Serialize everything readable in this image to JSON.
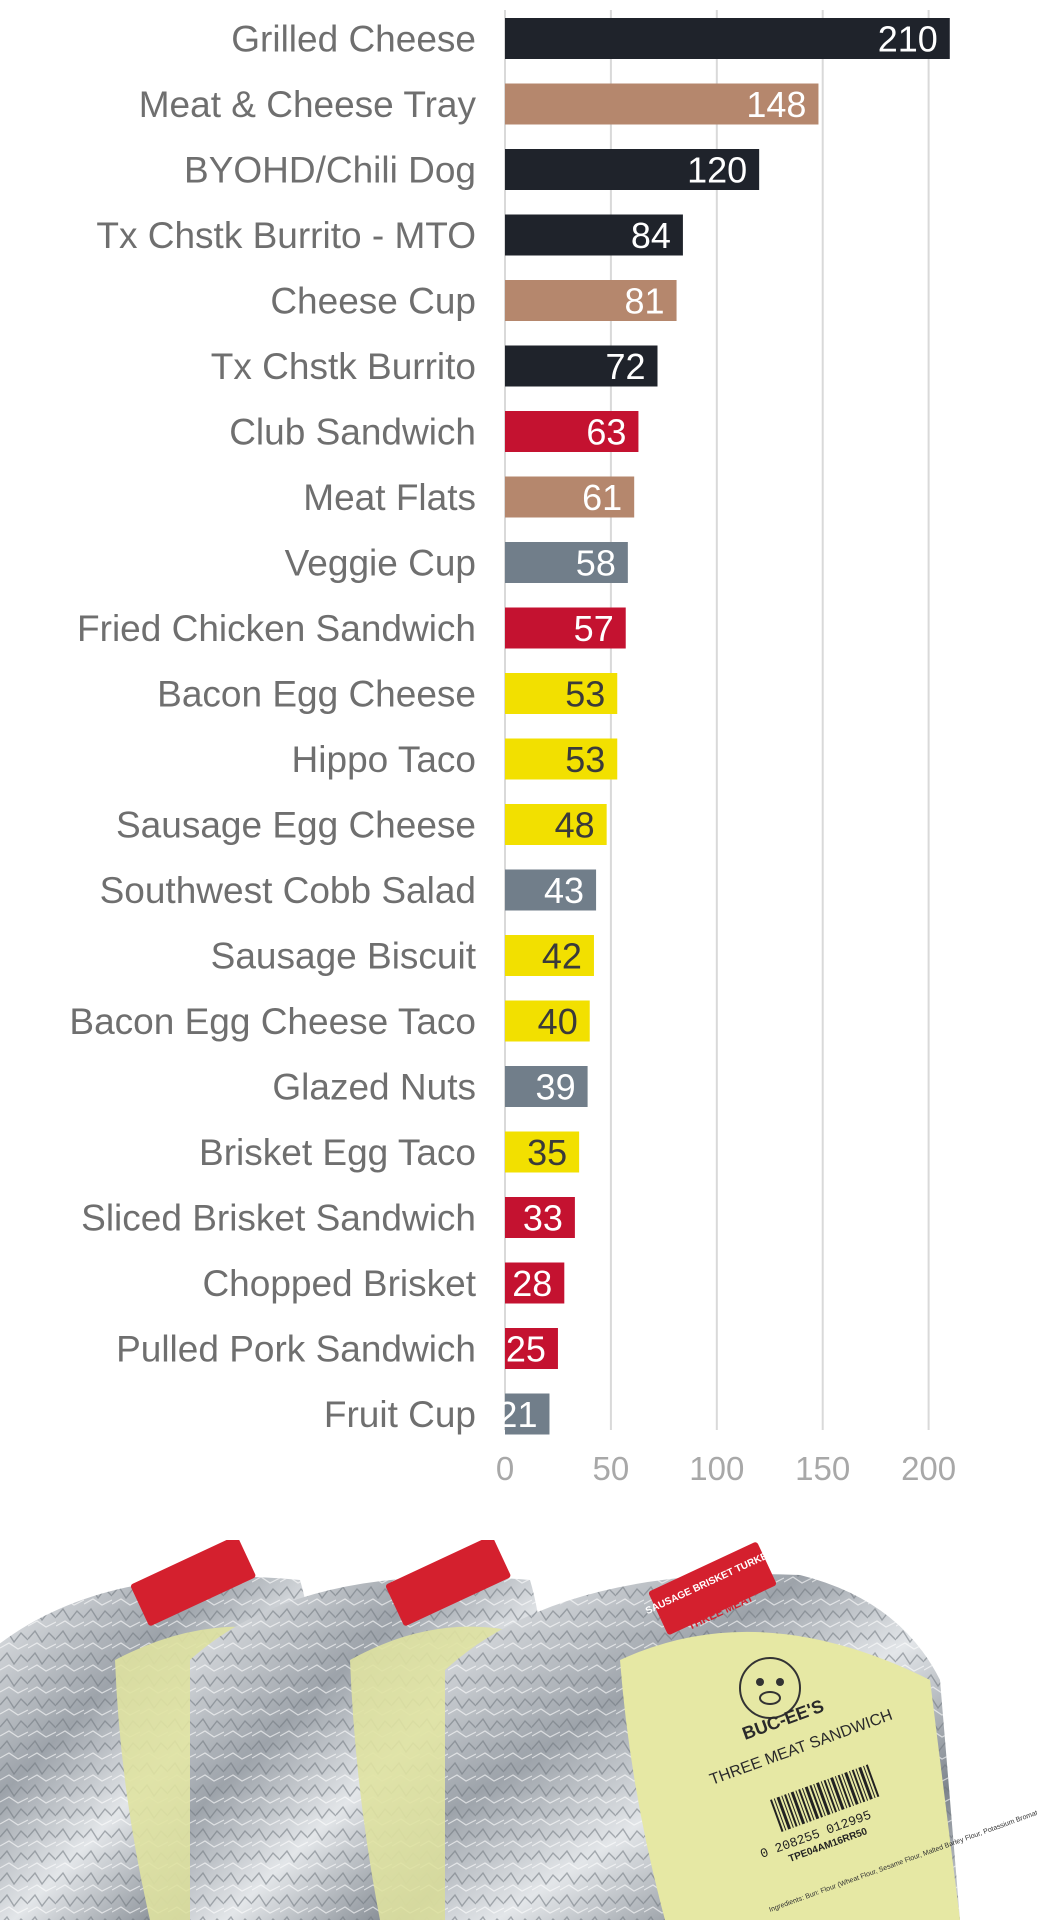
{
  "chart_data": {
    "type": "bar",
    "orientation": "horizontal",
    "title": "",
    "xlabel": "",
    "ylabel": "",
    "xlim": [
      0,
      210
    ],
    "x_ticks": [
      0,
      50,
      100,
      150,
      200
    ],
    "grid": "vertical gridlines on",
    "legend": "none",
    "categories": [
      "Grilled Cheese",
      "Meat & Cheese Tray",
      "BYOHD/Chili Dog",
      "Tx Chstk Burrito - MTO",
      "Cheese Cup",
      "Tx Chstk Burrito",
      "Club Sandwich",
      "Meat Flats",
      "Veggie Cup",
      "Fried Chicken Sandwich",
      "Bacon Egg Cheese",
      "Hippo Taco",
      "Sausage Egg Cheese",
      "Southwest Cobb Salad",
      "Sausage Biscuit",
      "Bacon Egg Cheese Taco",
      "Glazed Nuts",
      "Brisket Egg Taco",
      "Sliced Brisket Sandwich",
      "Chopped Brisket",
      "Pulled Pork Sandwich",
      "Fruit Cup"
    ],
    "values": [
      210,
      148,
      120,
      84,
      81,
      72,
      63,
      61,
      58,
      57,
      53,
      53,
      48,
      43,
      42,
      40,
      39,
      35,
      33,
      28,
      25,
      21
    ],
    "bar_colors": [
      "#1f232b",
      "#b5876d",
      "#1f232b",
      "#1f232b",
      "#b5876d",
      "#1f232b",
      "#c41230",
      "#b5876d",
      "#717e8a",
      "#c41230",
      "#f2e000",
      "#f2e000",
      "#f2e000",
      "#717e8a",
      "#f2e000",
      "#f2e000",
      "#717e8a",
      "#f2e000",
      "#c41230",
      "#c41230",
      "#c41230",
      "#717e8a"
    ],
    "value_label_colors": [
      "#ffffff",
      "#ffffff",
      "#ffffff",
      "#ffffff",
      "#ffffff",
      "#ffffff",
      "#ffffff",
      "#ffffff",
      "#ffffff",
      "#ffffff",
      "#3a3a3a",
      "#3a3a3a",
      "#3a3a3a",
      "#ffffff",
      "#3a3a3a",
      "#3a3a3a",
      "#ffffff",
      "#3a3a3a",
      "#ffffff",
      "#ffffff",
      "#ffffff",
      "#ffffff"
    ]
  },
  "photo": {
    "icon": "three-meat-sandwich-photo",
    "label_badge": "SAUSAGE BRISKET TURKEY",
    "label_tag": "THREE MEAT",
    "brand": "BUC-EE'S",
    "product_name": "THREE MEAT SANDWICH",
    "barcode": "0 208255 012995",
    "code": "TPE04AM16RR50",
    "ingredients": "Ingredients: Bun: Flour (Wheat Flour, Sesame Flour, Malted Barley Flour, Potassium Bromate, Niacin, Iron...",
    "colors": {
      "foil": "#c9ccd0",
      "wrap_label": "#e6e8a4",
      "badge": "#d4202e"
    }
  }
}
